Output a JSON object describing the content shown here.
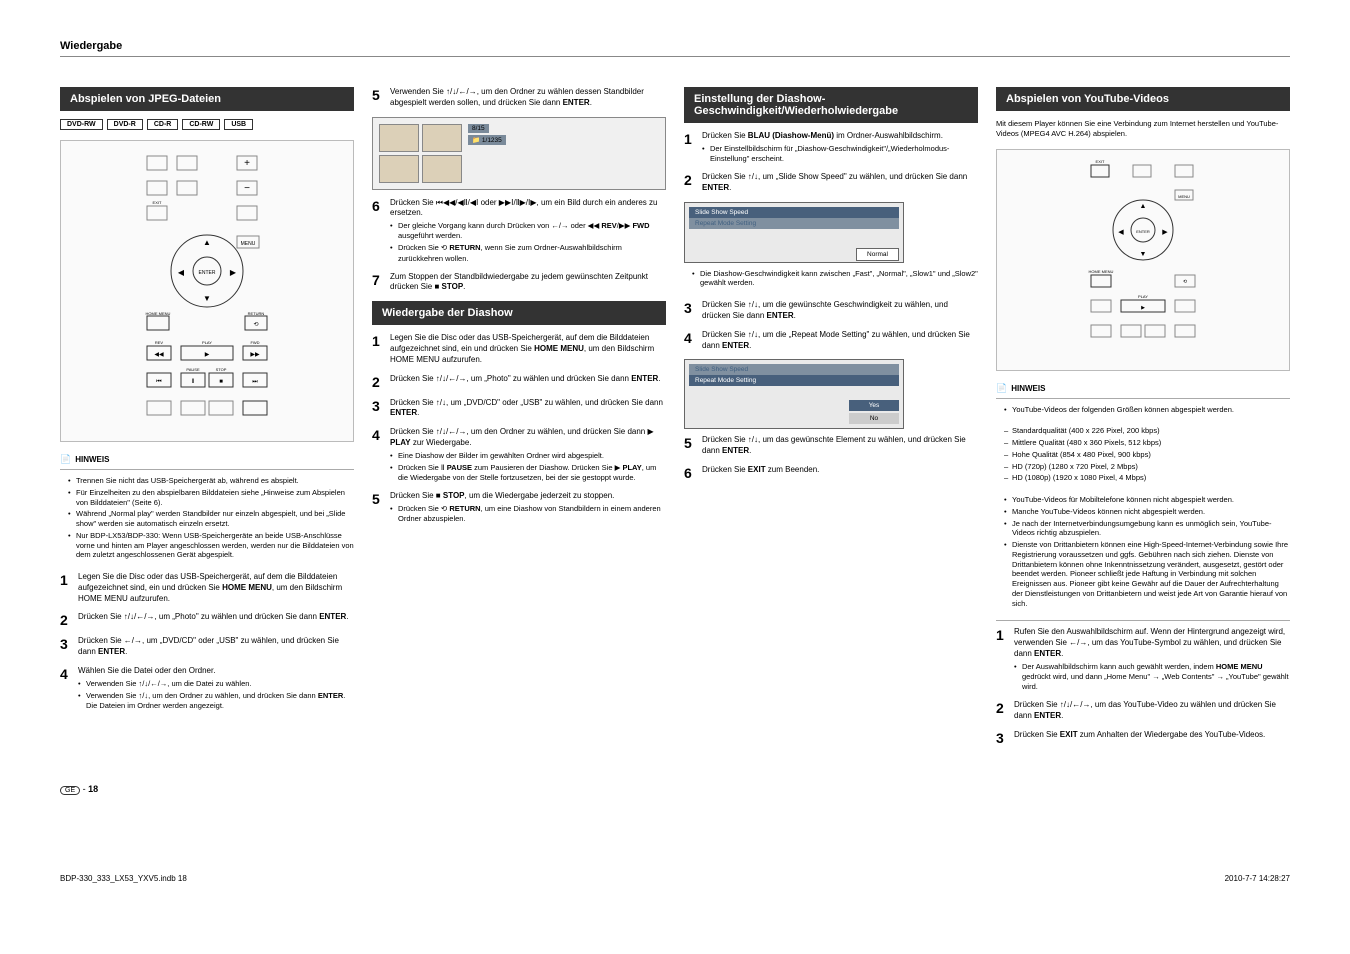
{
  "header": {
    "title": "Wiedergabe"
  },
  "col1": {
    "section1_title": "Abspielen von JPEG-Dateien",
    "media_tags": [
      "DVD-RW",
      "DVD-R",
      "CD-R",
      "CD-RW",
      "USB"
    ],
    "hinweis_label": "HINWEIS",
    "hinweis_items": [
      "Trennen Sie nicht das USB-Speichergerät ab, während es abspielt.",
      "Für Einzelheiten zu den abspielbaren Bilddateien siehe „Hinweise zum Abspielen von Bilddateien\" (Seite 6).",
      "Während „Normal play\" werden Standbilder nur einzeln abgespielt, und bei „Slide show\" werden sie automatisch einzeln ersetzt.",
      "Nur BDP-LX53/BDP-330: Wenn USB-Speichergeräte an beide USB-Anschlüsse vorne und hinten am Player angeschlossen werden, werden nur die Bilddateien von dem zuletzt angeschlossenen Gerät abgespielt."
    ],
    "steps": [
      {
        "n": "1",
        "text": "Legen Sie die Disc oder das USB-Speichergerät, auf dem die Bilddateien aufgezeichnet sind, ein und drücken Sie <b>HOME MENU</b>, um den Bildschirm HOME MENU aufzurufen."
      },
      {
        "n": "2",
        "text": "Drücken Sie ↑/↓/←/→, um „Photo\" zu wählen und drücken Sie dann <b>ENTER</b>."
      },
      {
        "n": "3",
        "text": "Drücken Sie ←/→, um „DVD/CD\" oder „USB\" zu wählen, und drücken Sie dann <b>ENTER</b>."
      },
      {
        "n": "4",
        "text": "Wählen Sie die Datei oder den Ordner.",
        "subs": [
          "Verwenden Sie ↑/↓/←/→, um die Datei zu wählen.",
          "Verwenden Sie ↑/↓, um den Ordner zu wählen, und drücken Sie dann <b>ENTER</b>. Die Dateien im Ordner werden angezeigt."
        ]
      }
    ]
  },
  "col2": {
    "steps_a": [
      {
        "n": "5",
        "text": "Verwenden Sie ↑/↓/←/→, um den Ordner zu wählen dessen Standbilder abgespielt werden sollen, und drücken Sie dann <b>ENTER</b>."
      },
      {
        "n": "6",
        "text": "Drücken Sie ⏮◀◀/◀Ⅱ/◀Ⅰ oder ▶▶Ⅰ/Ⅱ▶/Ⅰ▶, um ein Bild durch ein anderes zu ersetzen.",
        "subs": [
          "Der gleiche Vorgang kann durch Drücken von ←/→ oder ◀◀ <b>REV</b>/▶▶ <b>FWD</b> ausgeführt werden.",
          "Drücken Sie ⟲ <b>RETURN</b>, wenn Sie zum Ordner-Auswahlbildschirm zurückkehren wollen."
        ]
      },
      {
        "n": "7",
        "text": "Zum Stoppen der Standbildwiedergabe zu jedem gewünschten Zeitpunkt drücken Sie ■ <b>STOP</b>."
      }
    ],
    "section2_title": "Wiedergabe der Diashow",
    "steps_b": [
      {
        "n": "1",
        "text": "Legen Sie die Disc oder das USB-Speichergerät, auf dem die Bilddateien aufgezeichnet sind, ein und drücken Sie <b>HOME MENU</b>, um den Bildschirm HOME MENU aufzurufen."
      },
      {
        "n": "2",
        "text": "Drücken Sie ↑/↓/←/→, um „Photo\" zu wählen und drücken Sie dann <b>ENTER</b>."
      },
      {
        "n": "3",
        "text": "Drücken Sie ↑/↓, um „DVD/CD\" oder „USB\" zu wählen, und drücken Sie dann <b>ENTER</b>."
      },
      {
        "n": "4",
        "text": "Drücken Sie ↑/↓/←/→, um den Ordner zu wählen, und drücken Sie dann ▶ <b>PLAY</b> zur Wiedergabe.",
        "subs": [
          "Eine Diashow der Bilder im gewählten Ordner wird abgespielt.",
          "Drücken Sie Ⅱ <b>PAUSE</b> zum Pausieren der Diashow. Drücken Sie ▶ <b>PLAY</b>, um die Wiedergabe von der Stelle fortzusetzen, bei der sie gestoppt wurde."
        ]
      },
      {
        "n": "5",
        "text": "Drücken Sie ■ <b>STOP</b>, um die Wiedergabe jederzeit zu stoppen.",
        "subs": [
          "Drücken Sie ⟲ <b>RETURN</b>, um eine Diashow von Standbildern in einem anderen Ordner abzuspielen."
        ]
      }
    ]
  },
  "col3": {
    "section_title": "Einstellung der Diashow-Geschwindigkeit/Wiederholwiedergabe",
    "steps": [
      {
        "n": "1",
        "text": "Drücken Sie <b>BLAU (Diashow-Menü)</b> im Ordner-Auswahlbildschirm.",
        "subs": [
          "Der Einstellbildschirm für „Diashow-Geschwindigkeit\"/„Wiederholmodus-Einstellung\" erscheint."
        ]
      },
      {
        "n": "2",
        "text": "Drücken Sie ↑/↓, um „Slide Show Speed\" zu wählen, und drücken Sie dann <b>ENTER</b>."
      },
      {
        "n": "3",
        "text": "Drücken Sie ↑/↓, um die gewünschte Geschwindigkeit zu wählen, und drücken Sie dann <b>ENTER</b>."
      },
      {
        "n": "4",
        "text": "Drücken Sie ↑/↓, um die „Repeat Mode Setting\" zu wählen, und drücken Sie dann <b>ENTER</b>."
      },
      {
        "n": "5",
        "text": "Drücken Sie ↑/↓, um das gewünschte Element zu wählen, und drücken Sie dann <b>ENTER</b>."
      },
      {
        "n": "6",
        "text": "Drücken Sie <b>EXIT</b> zum Beenden."
      }
    ],
    "box1": {
      "row1": "Slide Show Speed",
      "row2": "Repeat Mode Setting",
      "value": "Normal",
      "note": "Die Diashow-Geschwindigkeit kann zwischen „Fast\", „Normal\", „Slow1\" und „Slow2\" gewählt werden."
    },
    "box2": {
      "row1": "Slide Show Speed",
      "row2": "Repeat Mode Setting",
      "yes": "Yes",
      "no": "No"
    }
  },
  "col4": {
    "section_title": "Abspielen von YouTube-Videos",
    "intro": "Mit diesem Player können Sie eine Verbindung zum Internet herstellen und YouTube-Videos (MPEG4 AVC H.264) abspielen.",
    "hinweis_label": "HINWEIS",
    "hinweis_items": [
      "YouTube-Videos der folgenden Größen können abgespielt werden.",
      "YouTube-Videos für Mobiltelefone können nicht abgespielt werden.",
      "Manche YouTube-Videos können nicht abgespielt werden.",
      "Je nach der Internetverbindungsumgebung kann es unmöglich sein, YouTube-Videos richtig abzuspielen.",
      "Dienste von Drittanbietern können eine High-Speed-Internet-Verbindung sowie Ihre Registrierung voraussetzen und ggfs. Gebühren nach sich ziehen. Dienste von Drittanbietern können ohne Inkenntnissetzung verändert, ausgesetzt, gestört oder beendet werden. Pioneer schließt jede Haftung in Verbindung mit solchen Ereignissen aus. Pioneer gibt keine Gewähr auf die Dauer der Aufrechterhaltung der Dienstleistungen von Drittanbietern und weist jede Art von Garantie hierauf von sich."
    ],
    "sub_sizes": [
      "Standardqualität (400 x 226 Pixel, 200 kbps)",
      "Mittlere Qualität (480 x 360 Pixels, 512 kbps)",
      "Hohe Qualität (854 x 480 Pixel, 900 kbps)",
      "HD (720p) (1280 x 720 Pixel, 2 Mbps)",
      "HD (1080p) (1920 x 1080 Pixel, 4 Mbps)"
    ],
    "steps": [
      {
        "n": "1",
        "text": "Rufen Sie den Auswahlbildschirm auf. Wenn der Hintergrund angezeigt wird, verwenden Sie ←/→, um das YouTube-Symbol zu wählen, und drücken Sie dann <b>ENTER</b>.",
        "subs": [
          "Der Auswahlbildschirm kann auch gewählt werden, indem <b>HOME MENU</b> gedrückt wird, und dann „Home Menu\" → „Web Contents\" → „YouTube\" gewählt wird."
        ]
      },
      {
        "n": "2",
        "text": "Drücken Sie ↑/↓/←/→, um das YouTube-Video zu wählen und drücken Sie dann <b>ENTER</b>."
      },
      {
        "n": "3",
        "text": "Drücken Sie <b>EXIT</b> zum Anhalten der Wiedergabe des YouTube-Videos."
      }
    ]
  },
  "footer": {
    "page_label": "GE",
    "page_num": "18",
    "file": "BDP-330_333_LX53_YXV5.indb   18",
    "date": "2010-7-7   14:28:27"
  }
}
